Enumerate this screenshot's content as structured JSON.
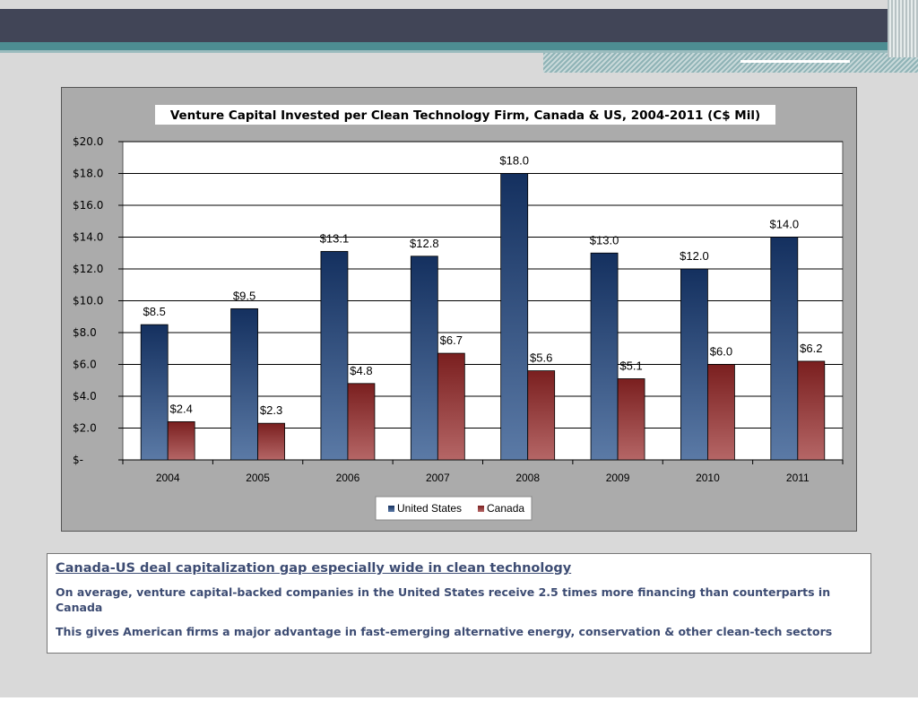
{
  "chart_data": {
    "type": "bar",
    "title": "Venture Capital Invested per Clean Technology Firm, Canada & US, 2004-2011 (C$ Mil)",
    "categories": [
      "2004",
      "2005",
      "2006",
      "2007",
      "2008",
      "2009",
      "2010",
      "2011"
    ],
    "series": [
      {
        "name": "United States",
        "values": [
          8.5,
          9.5,
          13.1,
          12.8,
          18.0,
          13.0,
          12.0,
          14.0
        ],
        "labels": [
          "$8.5",
          "$9.5",
          "$13.1",
          "$12.8",
          "$18.0",
          "$13.0",
          "$12.0",
          "$14.0"
        ],
        "color": "#1f3d6e"
      },
      {
        "name": "Canada",
        "values": [
          2.4,
          2.3,
          4.8,
          6.7,
          5.6,
          5.1,
          6.0,
          6.2
        ],
        "labels": [
          "$2.4",
          "$2.3",
          "$4.8",
          "$6.7",
          "$5.6",
          "$5.1",
          "$6.0",
          "$6.2"
        ],
        "color": "#8b2a2a"
      }
    ],
    "ylim": [
      0,
      20
    ],
    "yticks": [
      0,
      2,
      4,
      6,
      8,
      10,
      12,
      14,
      16,
      18,
      20
    ],
    "ytick_labels": [
      "$-",
      "$2.0",
      "$4.0",
      "$6.0",
      "$8.0",
      "$10.0",
      "$12.0",
      "$14.0",
      "$16.0",
      "$18.0",
      "$20.0"
    ],
    "grid": true,
    "legend": "bottom"
  },
  "summary": {
    "title": "Canada-US deal capitalization gap especially wide in clean technology",
    "para1": "On average, venture capital-backed companies in the United States receive 2.5 times more financing than counterparts in Canada",
    "para2": "This gives American firms a major advantage in fast-emerging alternative energy, conservation & other clean-tech sectors"
  }
}
